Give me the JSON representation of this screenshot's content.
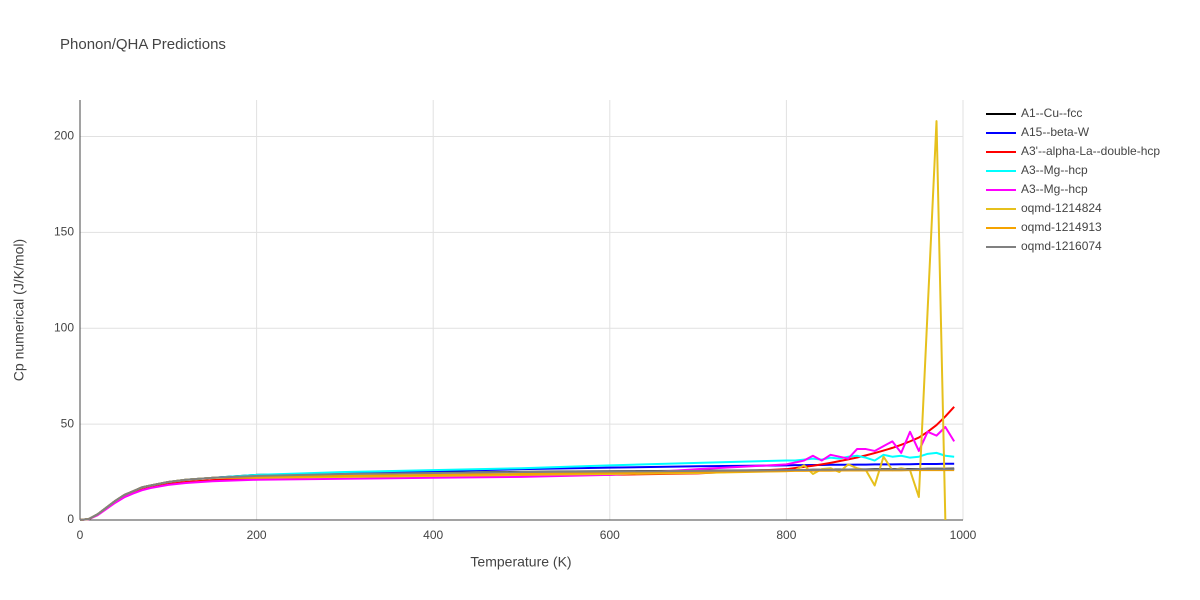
{
  "chart_data": {
    "type": "line",
    "title": "Phonon/QHA Predictions",
    "x_label": "Temperature (K)",
    "y_label": "Cp numerical (J/K/mol)",
    "xlim": [
      0,
      1000
    ],
    "ylim": [
      0,
      219
    ],
    "xticks": [
      0,
      200,
      400,
      600,
      800,
      1000
    ],
    "yticks": [
      0,
      50,
      100,
      150,
      200
    ],
    "grid": true,
    "legend": "right",
    "x": [
      0,
      10,
      20,
      30,
      40,
      50,
      60,
      70,
      80,
      100,
      120,
      150,
      200,
      300,
      400,
      500,
      600,
      700,
      800,
      810,
      820,
      830,
      840,
      850,
      860,
      870,
      880,
      890,
      900,
      910,
      920,
      930,
      940,
      950,
      960,
      970,
      980,
      990
    ],
    "series": [
      {
        "name": "A1--Cu--fcc",
        "color": "#000000",
        "values": [
          0,
          0.5,
          3,
          6.5,
          10,
          13,
          15,
          17,
          18,
          19.8,
          21,
          22,
          23.5,
          24.2,
          24.7,
          25.1,
          25.4,
          25.7,
          26,
          26.1,
          26.1,
          26.2,
          26.2,
          26.3,
          26.3,
          26.3,
          26.4,
          26.4,
          26.5,
          26.5,
          26.5,
          26.6,
          26.6,
          26.6,
          26.7,
          26.7,
          26.7,
          26.8
        ]
      },
      {
        "name": "A15--beta-W",
        "color": "#0000ff",
        "values": [
          0,
          0.5,
          3,
          6.5,
          10,
          13,
          15,
          17,
          18,
          19.8,
          21,
          22,
          23.3,
          24.5,
          25.5,
          26.5,
          27.3,
          28,
          28.5,
          28.6,
          28.6,
          28.7,
          28.7,
          28.8,
          28.8,
          28.8,
          28.9,
          28.9,
          29,
          29,
          29,
          29.1,
          29.1,
          29.2,
          29.2,
          29.2,
          29.3,
          29.3
        ]
      },
      {
        "name": "A3'--alpha-La--double-hcp",
        "color": "#ff0000",
        "values": [
          0,
          0.5,
          2.8,
          6,
          9.3,
          12,
          14,
          15.8,
          17,
          18.8,
          19.8,
          20.8,
          21.8,
          22.6,
          23,
          23.3,
          23.6,
          24.3,
          26.5,
          27.1,
          27.7,
          28.3,
          29,
          29.8,
          30.7,
          31.6,
          32.6,
          33.7,
          34.9,
          36.2,
          37.6,
          39.2,
          41,
          43,
          46,
          49.5,
          54,
          59
        ]
      },
      {
        "name": "A3--Mg--hcp",
        "color": "#00ffff",
        "values": [
          0,
          0.5,
          3,
          6.5,
          10,
          13,
          15,
          17,
          18,
          19.8,
          21,
          22,
          23.5,
          25,
          26,
          27,
          28.5,
          29.8,
          31,
          31,
          31.5,
          32,
          31.5,
          32.5,
          32,
          33,
          33.5,
          32.5,
          31,
          34,
          33,
          33.5,
          32.5,
          33,
          34.5,
          35,
          33.5,
          33
        ]
      },
      {
        "name": "A3--Mg--hcp",
        "color": "#ff00ff",
        "values": [
          0,
          0.4,
          2.5,
          5.8,
          9,
          11.8,
          13.8,
          15.5,
          16.7,
          18.3,
          19.3,
          20.2,
          21,
          21.5,
          22,
          22.5,
          23.5,
          26.5,
          29,
          30,
          31,
          33.5,
          31,
          34,
          33,
          32,
          37,
          37,
          36,
          38.5,
          41,
          35,
          46,
          36,
          46,
          44,
          48.5,
          41
        ]
      },
      {
        "name": "oqmd-1214824",
        "color": "#e6c01c",
        "values": [
          0,
          0.5,
          3,
          6.5,
          10,
          13,
          15,
          17,
          18,
          19.8,
          21,
          22,
          22,
          22.5,
          23,
          23.5,
          24,
          24.5,
          25.5,
          26,
          28.5,
          24,
          26.5,
          27,
          25,
          29,
          27,
          26,
          18,
          33,
          26,
          27,
          26,
          12,
          110,
          208,
          0,
          null
        ]
      },
      {
        "name": "oqmd-1214913",
        "color": "#f5a300",
        "values": [
          0,
          0.5,
          3,
          6.5,
          10,
          13,
          15,
          17,
          18,
          19.8,
          21,
          22,
          22.5,
          23,
          23.5,
          24,
          24.5,
          25,
          25.5,
          25.6,
          25.6,
          25.7,
          25.7,
          25.7,
          25.8,
          25.8,
          25.8,
          25.8,
          25.9,
          25.9,
          25.9,
          25.9,
          26,
          26,
          26,
          26,
          26,
          26
        ]
      },
      {
        "name": "oqmd-1216074",
        "color": "#808080",
        "values": [
          0,
          0.5,
          3,
          6.5,
          10,
          13,
          15,
          17,
          18,
          19.8,
          21,
          22,
          23,
          24,
          24.5,
          25,
          25.3,
          25.6,
          26,
          26.1,
          26.1,
          26.1,
          26.2,
          26.2,
          26.2,
          26.3,
          26.3,
          26.3,
          26.3,
          26.4,
          26.4,
          26.4,
          26.4,
          26.5,
          26.5,
          26.5,
          26.5,
          26.5
        ]
      }
    ]
  }
}
